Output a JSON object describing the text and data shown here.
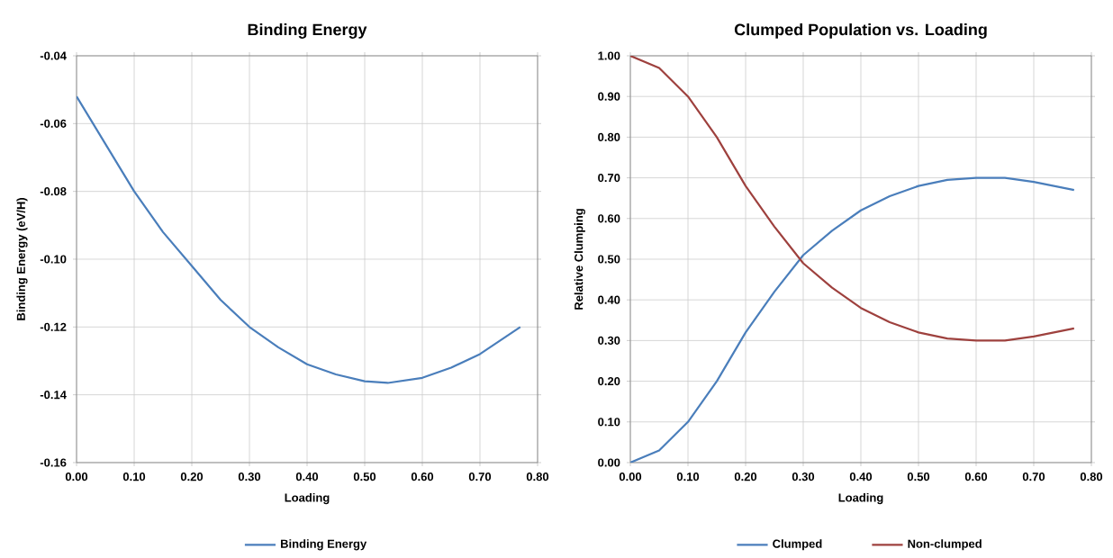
{
  "chart_data": [
    {
      "type": "line",
      "title": "Binding Energy",
      "xlabel": "Loading",
      "ylabel": "Binding Energy (eV/H)",
      "xlim": [
        0,
        0.8
      ],
      "ylim": [
        -0.16,
        -0.04
      ],
      "xticks": [
        {
          "value": 0,
          "label": "0.00"
        },
        {
          "value": 0.1,
          "label": "0.10"
        },
        {
          "value": 0.2,
          "label": "0.20"
        },
        {
          "value": 0.3,
          "label": "0.30"
        },
        {
          "value": 0.4,
          "label": "0.40"
        },
        {
          "value": 0.5,
          "label": "0.50"
        },
        {
          "value": 0.6,
          "label": "0.60"
        },
        {
          "value": 0.7,
          "label": "0.70"
        },
        {
          "value": 0.8,
          "label": "0.80"
        }
      ],
      "yticks": [
        -0.16,
        -0.14,
        -0.12,
        {
          "value": -0.1,
          "label": "-0.10"
        },
        -0.08,
        -0.06,
        -0.04
      ],
      "grid": true,
      "legend": "bottom",
      "marker": "none",
      "line_style": "solid",
      "series": [
        {
          "name": "Binding Energy",
          "color": "#4a7ebb",
          "x": [
            0,
            0.05,
            0.1,
            0.15,
            0.2,
            0.25,
            0.3,
            0.35,
            0.4,
            0.45,
            0.5,
            0.54,
            0.6,
            0.65,
            0.7,
            0.77
          ],
          "values": [
            -0.052,
            -0.066,
            -0.08,
            -0.092,
            -0.102,
            -0.112,
            -0.12,
            -0.126,
            -0.131,
            -0.134,
            -0.136,
            -0.1365,
            -0.135,
            -0.132,
            -0.128,
            -0.12
          ]
        }
      ]
    },
    {
      "type": "line",
      "title": "Clumped Population vs. Loading",
      "xlabel": "Loading",
      "ylabel": "Relative Clumping",
      "xlim": [
        0,
        0.8
      ],
      "ylim": [
        0,
        1
      ],
      "xticks": [
        {
          "value": 0,
          "label": "0.00"
        },
        {
          "value": 0.1,
          "label": "0.10"
        },
        {
          "value": 0.2,
          "label": "0.20"
        },
        {
          "value": 0.3,
          "label": "0.30"
        },
        {
          "value": 0.4,
          "label": "0.40"
        },
        {
          "value": 0.5,
          "label": "0.50"
        },
        {
          "value": 0.6,
          "label": "0.60"
        },
        {
          "value": 0.7,
          "label": "0.70"
        },
        {
          "value": 0.8,
          "label": "0.80"
        }
      ],
      "yticks": [
        {
          "value": 0,
          "label": "0.00"
        },
        {
          "value": 0.1,
          "label": "0.10"
        },
        {
          "value": 0.2,
          "label": "0.20"
        },
        {
          "value": 0.3,
          "label": "0.30"
        },
        {
          "value": 0.4,
          "label": "0.40"
        },
        {
          "value": 0.5,
          "label": "0.50"
        },
        {
          "value": 0.6,
          "label": "0.60"
        },
        {
          "value": 0.7,
          "label": "0.70"
        },
        {
          "value": 0.8,
          "label": "0.80"
        },
        {
          "value": 0.9,
          "label": "0.90"
        },
        {
          "value": 1,
          "label": "1.00"
        }
      ],
      "grid": true,
      "legend": "bottom",
      "marker": "none",
      "line_style": "solid",
      "series": [
        {
          "name": "Clumped",
          "color": "#4a7ebb",
          "x": [
            0,
            0.05,
            0.1,
            0.15,
            0.2,
            0.25,
            0.3,
            0.35,
            0.4,
            0.45,
            0.5,
            0.55,
            0.6,
            0.65,
            0.7,
            0.77
          ],
          "values": [
            0,
            0.03,
            0.1,
            0.2,
            0.32,
            0.42,
            0.51,
            0.57,
            0.62,
            0.655,
            0.68,
            0.695,
            0.7,
            0.7,
            0.69,
            0.67
          ]
        },
        {
          "name": "Non-clumped",
          "color": "#9e413e",
          "x": [
            0,
            0.05,
            0.1,
            0.15,
            0.2,
            0.25,
            0.3,
            0.35,
            0.4,
            0.45,
            0.5,
            0.55,
            0.6,
            0.65,
            0.7,
            0.77
          ],
          "values": [
            1,
            0.97,
            0.9,
            0.8,
            0.68,
            0.58,
            0.49,
            0.43,
            0.38,
            0.345,
            0.32,
            0.305,
            0.3,
            0.3,
            0.31,
            0.33
          ]
        }
      ]
    }
  ]
}
